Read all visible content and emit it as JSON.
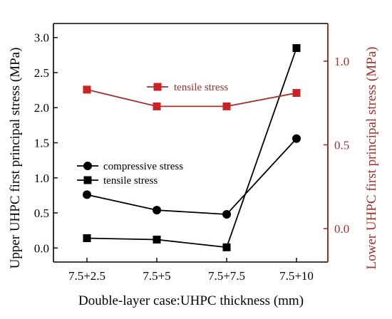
{
  "chart_data": {
    "type": "line",
    "categories": [
      "7.5+2.5",
      "7.5+5",
      "7.5+7.5",
      "7.5+10"
    ],
    "xlabel": "Double-layer case:UHPC thickness (mm)",
    "ylabel_left": "Upper UHPC first principal stress (MPa)",
    "ylabel_right": "Lower UHPC first principal stress (MPa)",
    "ylim_left": [
      -0.2,
      3.2
    ],
    "ylim_right": [
      -0.2,
      1.225
    ],
    "yticks_left": [
      0.0,
      0.5,
      1.0,
      1.5,
      2.0,
      2.5,
      3.0
    ],
    "yticks_left_labels": [
      "0.0",
      "0.5",
      "1.0",
      "1.5",
      "2.0",
      "2.5",
      "3.0"
    ],
    "yticks_right": [
      0.0,
      0.5,
      1.0
    ],
    "yticks_right_labels": [
      "0.0",
      "0.5",
      "1.0"
    ],
    "series": [
      {
        "name": "compressive stress",
        "axis": "left",
        "marker": "circle",
        "color": "#000000",
        "values": [
          0.76,
          0.54,
          0.48,
          1.56
        ]
      },
      {
        "name": "tensile stress",
        "axis": "left",
        "marker": "square",
        "color": "#000000",
        "values": [
          0.14,
          0.12,
          0.01,
          2.85
        ]
      },
      {
        "name": "tensile stress",
        "axis": "right",
        "marker": "square",
        "color": "#cc2222",
        "line_color": "#a0302a",
        "values": [
          0.83,
          0.73,
          0.73,
          0.81
        ]
      }
    ],
    "legend_left": [
      "compressive stress",
      "tensile stress"
    ],
    "legend_right": [
      "tensile stress"
    ],
    "right_axis_color": "#a0302a"
  }
}
